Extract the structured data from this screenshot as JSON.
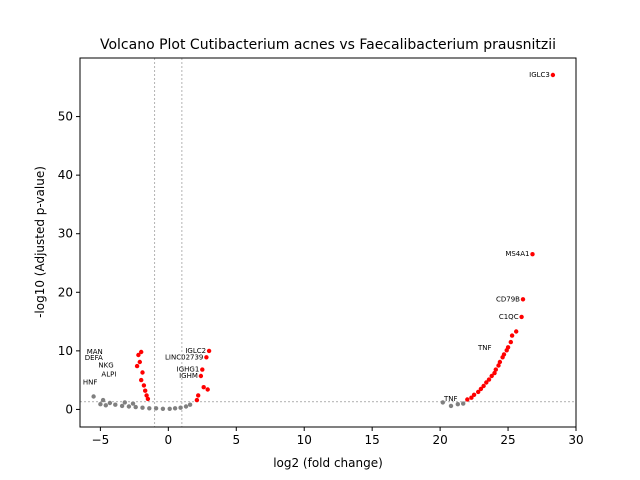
{
  "chart_data": {
    "type": "scatter",
    "title": "Volcano Plot Cutibacterium acnes vs Faecalibacterium prausnitzii",
    "xlabel": "log2 (fold change)",
    "ylabel": "-log10 (Adjusted p-value)",
    "xlim": [
      -6.5,
      30
    ],
    "ylim": [
      -3,
      60
    ],
    "xticks": [
      -5,
      0,
      5,
      10,
      15,
      20,
      25,
      30
    ],
    "yticks": [
      0,
      10,
      20,
      30,
      40,
      50
    ],
    "grid": false,
    "thresholds": {
      "log2fc": [
        -1,
        1
      ],
      "neg_log10_padj": 1.3
    },
    "colors": {
      "significant": "#ff0000",
      "nonsignificant": "#808080",
      "threshold_line": "#808080"
    },
    "labeled_points": [
      {
        "gene": "IGLC3",
        "x": 28.3,
        "y": 57.1
      },
      {
        "gene": "MS4A1",
        "x": 26.8,
        "y": 26.5
      },
      {
        "gene": "CD79B",
        "x": 26.1,
        "y": 18.8
      },
      {
        "gene": "C1QC",
        "x": 26.0,
        "y": 15.8
      },
      {
        "gene": "IGLC2",
        "x": 3.0,
        "y": 10.0
      },
      {
        "gene": "LINC02739",
        "x": 2.8,
        "y": 8.9
      },
      {
        "gene": "IGHG1",
        "x": 2.5,
        "y": 6.8
      },
      {
        "gene": "IGHM",
        "x": 2.4,
        "y": 5.7
      },
      {
        "gene": "TNF",
        "x": 24.0,
        "y": 10.5
      },
      {
        "gene": "TNF",
        "x": 21.5,
        "y": 1.8
      },
      {
        "gene": "MAN",
        "x": -4.6,
        "y": 9.8
      },
      {
        "gene": "DEFA",
        "x": -4.6,
        "y": 8.8
      },
      {
        "gene": "NKG",
        "x": -3.8,
        "y": 7.5
      },
      {
        "gene": "ALPI",
        "x": -3.6,
        "y": 6.0
      },
      {
        "gene": "HNF",
        "x": -5.0,
        "y": 4.6
      }
    ],
    "series": [
      {
        "name": "",
        "color": "#ff0000",
        "points": [
          [
            28.3,
            57.1
          ],
          [
            26.8,
            26.5
          ],
          [
            26.1,
            18.8
          ],
          [
            26.0,
            15.8
          ],
          [
            25.6,
            13.3
          ],
          [
            25.3,
            12.6
          ],
          [
            25.2,
            11.5
          ],
          [
            25.0,
            10.6
          ],
          [
            24.9,
            10.1
          ],
          [
            24.7,
            9.4
          ],
          [
            24.6,
            8.9
          ],
          [
            24.4,
            8.1
          ],
          [
            24.3,
            7.5
          ],
          [
            24.1,
            6.8
          ],
          [
            24.0,
            6.2
          ],
          [
            23.8,
            5.7
          ],
          [
            23.6,
            5.1
          ],
          [
            23.4,
            4.6
          ],
          [
            23.2,
            4.0
          ],
          [
            23.0,
            3.5
          ],
          [
            22.8,
            3.0
          ],
          [
            22.5,
            2.5
          ],
          [
            22.3,
            2.0
          ],
          [
            22.0,
            1.7
          ],
          [
            3.0,
            10.0
          ],
          [
            2.8,
            8.9
          ],
          [
            2.5,
            6.8
          ],
          [
            2.4,
            5.7
          ],
          [
            2.6,
            3.8
          ],
          [
            2.9,
            3.4
          ],
          [
            2.2,
            2.4
          ],
          [
            2.1,
            1.6
          ],
          [
            -2.0,
            9.8
          ],
          [
            -2.2,
            9.3
          ],
          [
            -2.1,
            8.1
          ],
          [
            -2.3,
            7.4
          ],
          [
            -1.9,
            6.3
          ],
          [
            -2.0,
            5.0
          ],
          [
            -1.8,
            4.1
          ],
          [
            -1.7,
            3.2
          ],
          [
            -1.6,
            2.4
          ],
          [
            -1.5,
            1.8
          ]
        ]
      },
      {
        "name": "",
        "color": "#808080",
        "points": [
          [
            -5.5,
            2.2
          ],
          [
            -4.8,
            1.6
          ],
          [
            -4.3,
            1.1
          ],
          [
            -3.9,
            0.8
          ],
          [
            -3.4,
            0.6
          ],
          [
            -2.9,
            0.5
          ],
          [
            -2.4,
            0.4
          ],
          [
            -1.9,
            0.3
          ],
          [
            -1.4,
            0.2
          ],
          [
            -0.9,
            0.2
          ],
          [
            -0.4,
            0.1
          ],
          [
            0.1,
            0.1
          ],
          [
            0.5,
            0.2
          ],
          [
            0.9,
            0.3
          ],
          [
            1.3,
            0.5
          ],
          [
            1.6,
            0.8
          ],
          [
            -5.0,
            0.9
          ],
          [
            -4.6,
            0.7
          ],
          [
            -3.2,
            1.2
          ],
          [
            -2.6,
            1.0
          ],
          [
            20.8,
            0.6
          ],
          [
            21.3,
            0.9
          ],
          [
            21.7,
            1.0
          ],
          [
            20.2,
            1.2
          ]
        ]
      }
    ]
  }
}
